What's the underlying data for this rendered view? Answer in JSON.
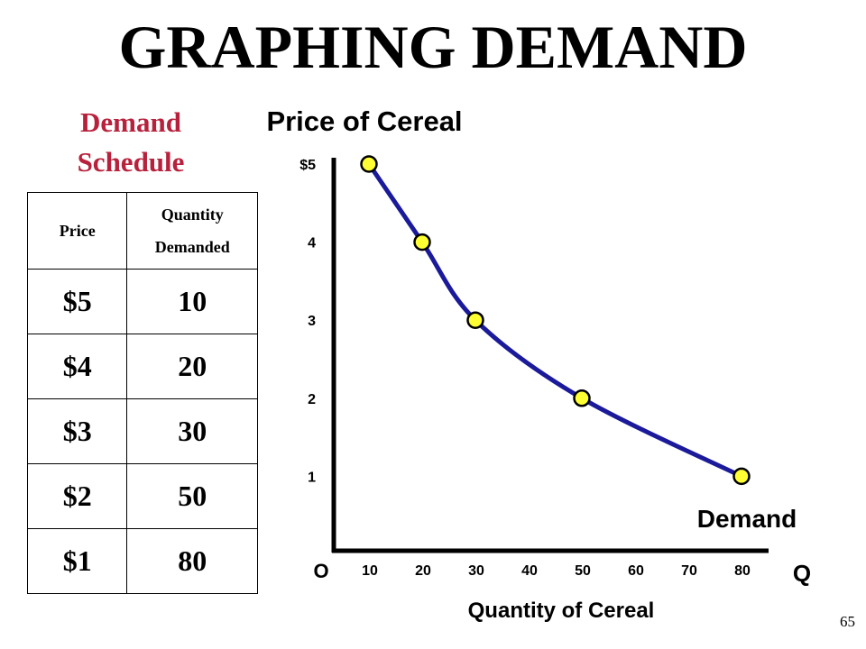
{
  "slide": {
    "title": "GRAPHING DEMAND",
    "page_number": "65"
  },
  "schedule": {
    "title_line1": "Demand",
    "title_line2": "Schedule",
    "headers": {
      "price": "Price",
      "quantity_line1": "Quantity",
      "quantity_line2": "Demanded"
    },
    "rows": [
      {
        "price": "$5",
        "quantity": "10"
      },
      {
        "price": "$4",
        "quantity": "20"
      },
      {
        "price": "$3",
        "quantity": "30"
      },
      {
        "price": "$2",
        "quantity": "50"
      },
      {
        "price": "$1",
        "quantity": "80"
      }
    ]
  },
  "chart_data": {
    "type": "line",
    "title": "Price of Cereal",
    "xlabel": "Quantity of Cereal",
    "x_axis_end_label": "Q",
    "origin_label": "O",
    "curve_label": "Demand",
    "xlim": [
      0,
      80
    ],
    "ylim": [
      0,
      5
    ],
    "x_ticks": [
      10,
      20,
      30,
      40,
      50,
      60,
      70,
      80
    ],
    "x_tick_labels": [
      "10",
      "20",
      "30",
      "40",
      "50",
      "60",
      "70",
      "80"
    ],
    "y_ticks": [
      1,
      2,
      3,
      4,
      5
    ],
    "y_tick_labels": [
      "1",
      "2",
      "3",
      "4",
      "$5"
    ],
    "grid": false,
    "points": [
      {
        "x": 10,
        "y": 5
      },
      {
        "x": 20,
        "y": 4
      },
      {
        "x": 30,
        "y": 3
      },
      {
        "x": 50,
        "y": 2
      },
      {
        "x": 80,
        "y": 1
      }
    ],
    "colors": {
      "line": "#1a1a9a",
      "marker_fill": "#ffff33",
      "marker_stroke": "#000000",
      "axis": "#000000"
    }
  },
  "colors": {
    "schedule_title": "#b8213c"
  }
}
